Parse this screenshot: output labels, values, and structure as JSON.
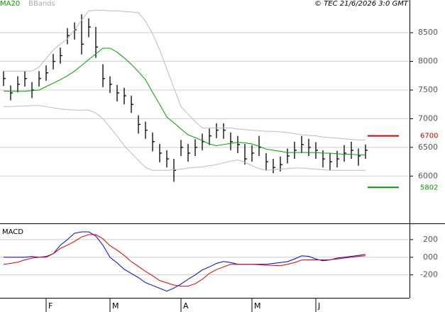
{
  "chart_data": [
    {
      "type": "ohlc",
      "source": "© TEC 21/6/2026 3:0 GMT",
      "ylim": [
        5200,
        9070
      ],
      "yticks": [
        6000,
        6500,
        7000,
        7500,
        8000,
        8500
      ],
      "grid": true,
      "bar_color": "#000000",
      "high": [
        7830,
        7580,
        7740,
        7830,
        7640,
        7830,
        7930,
        8130,
        8240,
        8580,
        8680,
        8820,
        8750,
        8600,
        7950,
        7740,
        7590,
        7540,
        7400,
        7060,
        6950,
        6760,
        6560,
        6450,
        6300,
        6630,
        6560,
        6640,
        6740,
        6830,
        6920,
        6920,
        6760,
        6700,
        6560,
        6540,
        6700,
        6400,
        6300,
        6340,
        6480,
        6600,
        6700,
        6650,
        6590,
        6450,
        6400,
        6440,
        6540,
        6600,
        6480,
        6550
      ],
      "low": [
        7570,
        7320,
        7460,
        7560,
        7360,
        7560,
        7660,
        7860,
        7960,
        8300,
        8380,
        8120,
        8420,
        8060,
        7550,
        7450,
        7300,
        7250,
        7100,
        6740,
        6650,
        6430,
        6240,
        6150,
        5900,
        6350,
        6250,
        6350,
        6450,
        6540,
        6660,
        6650,
        6450,
        6400,
        6200,
        6250,
        6350,
        6100,
        6050,
        6080,
        6220,
        6300,
        6400,
        6350,
        6300,
        6150,
        6100,
        6150,
        6250,
        6300,
        6180,
        6300
      ],
      "close": [
        7700,
        7450,
        7600,
        7700,
        7500,
        7700,
        7800,
        8000,
        8100,
        8450,
        8550,
        8300,
        8600,
        8250,
        7700,
        7600,
        7450,
        7400,
        7250,
        6900,
        6800,
        6600,
        6400,
        6300,
        6100,
        6500,
        6400,
        6500,
        6600,
        6700,
        6800,
        6800,
        6600,
        6550,
        6300,
        6400,
        6500,
        6250,
        6150,
        6200,
        6350,
        6450,
        6550,
        6500,
        6450,
        6300,
        6250,
        6300,
        6400,
        6450,
        6350,
        6450
      ],
      "series": [
        {
          "name": "MA20",
          "color": "#00a000",
          "values": [
            7485,
            7480,
            7480,
            7480,
            7490,
            7500,
            7560,
            7620,
            7680,
            7750,
            7830,
            7930,
            8030,
            8130,
            8230,
            8230,
            8160,
            8060,
            7950,
            7820,
            7680,
            7460,
            7250,
            7030,
            6930,
            6820,
            6720,
            6670,
            6620,
            6560,
            6530,
            6550,
            6570,
            6590,
            6580,
            6560,
            6520,
            6470,
            6450,
            6430,
            6410,
            6410,
            6410,
            6410,
            6410,
            6400,
            6400,
            6390,
            6380,
            6380,
            6370,
            6370
          ]
        },
        {
          "name": "BBands",
          "color": "#bbbbbb",
          "values": [
            7830,
            7830,
            7830,
            7830,
            7830,
            7900,
            8050,
            8200,
            8300,
            8390,
            8550,
            8720,
            8880,
            8890,
            8890,
            8880,
            8880,
            8870,
            8860,
            8850,
            8700,
            8480,
            8200,
            7870,
            7540,
            7210,
            7080,
            6950,
            6840,
            6840,
            6840,
            6840,
            6840,
            6820,
            6810,
            6800,
            6790,
            6780,
            6780,
            6770,
            6760,
            6740,
            6720,
            6710,
            6700,
            6680,
            6670,
            6660,
            6650,
            6640,
            6630,
            6630
          ],
          "lower": [
            7210,
            7210,
            7220,
            7220,
            7230,
            7230,
            7210,
            7190,
            7170,
            7160,
            7150,
            7150,
            7150,
            7100,
            7000,
            6850,
            6700,
            6530,
            6400,
            6270,
            6150,
            6100,
            6100,
            6100,
            6110,
            6120,
            6140,
            6150,
            6160,
            6180,
            6200,
            6230,
            6260,
            6280,
            6240,
            6180,
            6130,
            6100,
            6110,
            6120,
            6130,
            6140,
            6140,
            6130,
            6120,
            6110,
            6100,
            6100,
            6100,
            6100,
            6100,
            6100
          ]
        }
      ],
      "levels": [
        {
          "value": 6700,
          "color": "#cc0000"
        },
        {
          "value": 5802,
          "color": "#009900"
        }
      ]
    },
    {
      "type": "line",
      "title": "MACD",
      "ylim": [
        -460,
        376
      ],
      "yticks": [
        200,
        {
          "value": 0,
          "label": "000"
        },
        -200
      ],
      "categories": [
        null,
        null,
        null,
        null,
        null,
        null,
        "F",
        null,
        null,
        null,
        null,
        null,
        null,
        null,
        null,
        "M",
        null,
        null,
        null,
        null,
        null,
        null,
        null,
        null,
        null,
        "A",
        null,
        null,
        null,
        null,
        null,
        null,
        null,
        null,
        null,
        "M",
        null,
        null,
        null,
        null,
        null,
        null,
        null,
        null,
        "J",
        null,
        null,
        null,
        null,
        null,
        null,
        null
      ],
      "series": [
        {
          "name": "MACD",
          "color": "#0000dd",
          "values": [
            0,
            0,
            0,
            0,
            8,
            0,
            8,
            40,
            136,
            200,
            272,
            288,
            288,
            240,
            136,
            0,
            -64,
            -136,
            -184,
            -230,
            -288,
            -320,
            -352,
            -384,
            -350,
            -304,
            -250,
            -200,
            -144,
            -110,
            -70,
            -48,
            -60,
            -80,
            -80,
            -80,
            -80,
            -80,
            -70,
            -60,
            -50,
            -20,
            16,
            10,
            -20,
            -40,
            -30,
            -10,
            0,
            10,
            20,
            32
          ]
        },
        {
          "name": "Signal",
          "color": "#dd0000",
          "values": [
            -80,
            -70,
            -56,
            -30,
            -10,
            0,
            0,
            40,
            100,
            136,
            180,
            230,
            256,
            256,
            210,
            130,
            80,
            20,
            -50,
            -104,
            -160,
            -210,
            -264,
            -290,
            -315,
            -328,
            -328,
            -300,
            -250,
            -184,
            -140,
            -110,
            -80,
            -80,
            -80,
            -80,
            -85,
            -90,
            -92,
            -96,
            -80,
            -60,
            -32,
            -30,
            -30,
            -30,
            -28,
            -20,
            -10,
            0,
            10,
            16
          ]
        }
      ]
    }
  ]
}
